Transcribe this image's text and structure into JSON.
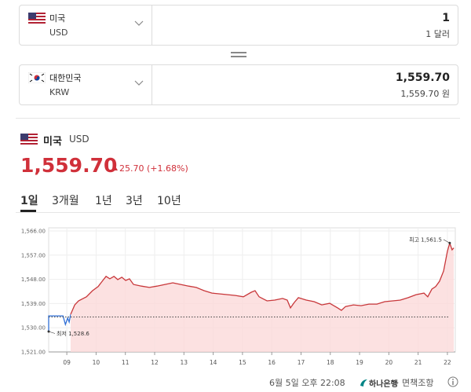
{
  "converter": {
    "from": {
      "country": "미국",
      "code": "USD",
      "amount": "1",
      "amount_text": "1 달러"
    },
    "to": {
      "country": "대한민국",
      "code": "KRW",
      "amount": "1,559.70",
      "amount_text": "1,559.70 원"
    }
  },
  "quote": {
    "country": "미국",
    "code": "USD",
    "price": "1,559.70",
    "change": "25.70 (+1.68%)"
  },
  "tabs": [
    "1일",
    "3개월",
    "1년",
    "3년",
    "10년"
  ],
  "active_tab": 0,
  "footer": {
    "timestamp": "6월 5일 오후 22:08",
    "bank": "하나은행",
    "disclaimer": "· 면책조항"
  },
  "chart_data": {
    "type": "line",
    "series": [
      {
        "color": "#2f6fd6",
        "x": [
          8.38,
          8.38,
          8.87,
          8.95,
          9.03,
          9.08,
          9.13
        ],
        "values": [
          1528.6,
          1534.4,
          1534.4,
          1531.2,
          1533.6,
          1532.1,
          1535.0
        ]
      },
      {
        "color": "#c8373a",
        "fill": "#fbdada",
        "x": [
          9.13,
          9.27,
          9.4,
          9.67,
          9.88,
          10.07,
          10.21,
          10.34,
          10.47,
          10.61,
          10.74,
          10.88,
          11.01,
          11.14,
          11.28,
          11.55,
          11.82,
          12.08,
          12.35,
          12.62,
          12.89,
          13.16,
          13.42,
          13.69,
          13.96,
          14.23,
          14.5,
          14.76,
          15.03,
          15.3,
          15.43,
          15.57,
          15.84,
          16.1,
          16.37,
          16.53,
          16.64,
          16.77,
          16.91,
          17.18,
          17.45,
          17.71,
          17.98,
          18.25,
          18.38,
          18.52,
          18.79,
          19.05,
          19.32,
          19.59,
          19.86,
          20.13,
          20.39,
          20.66,
          20.93,
          21.2,
          21.33,
          21.47,
          21.6,
          21.73,
          21.87,
          22.0,
          22.08,
          22.16,
          22.22
        ],
        "values": [
          1535.0,
          1538.5,
          1540.0,
          1541.5,
          1543.8,
          1545.3,
          1547.3,
          1549.1,
          1548.2,
          1549.1,
          1547.9,
          1548.8,
          1547.6,
          1548.2,
          1546.1,
          1545.5,
          1545.0,
          1545.5,
          1546.1,
          1546.7,
          1546.1,
          1545.5,
          1545.0,
          1543.8,
          1542.9,
          1542.6,
          1542.3,
          1542.0,
          1541.5,
          1543.2,
          1543.8,
          1541.5,
          1540.0,
          1540.3,
          1540.9,
          1540.3,
          1537.4,
          1539.4,
          1541.2,
          1540.3,
          1539.7,
          1538.5,
          1539.1,
          1537.4,
          1536.5,
          1537.9,
          1538.5,
          1538.2,
          1538.8,
          1538.8,
          1539.7,
          1540.0,
          1540.3,
          1541.2,
          1542.3,
          1542.9,
          1541.5,
          1544.4,
          1545.3,
          1547.3,
          1551.1,
          1558.4,
          1561.5,
          1559.0,
          1559.7
        ]
      }
    ],
    "reference_line": 1534.0,
    "annotations": [
      {
        "label": "최고 1,561.5",
        "value": 1561.5,
        "x": 22.08
      },
      {
        "label": "최저 1,528.6",
        "value": 1528.6,
        "x": 8.38
      }
    ],
    "xlim": [
      8.38,
      22.27
    ],
    "ylim": [
      1521,
      1566
    ],
    "xticks": [
      {
        "value": 9,
        "label": "09"
      },
      10,
      11,
      12,
      13,
      14,
      15,
      16,
      17,
      18,
      19,
      20,
      21,
      22
    ],
    "yticks": [
      {
        "value": 1521,
        "label": "1,521.00"
      },
      {
        "value": 1530,
        "label": "1,530.00"
      },
      {
        "value": 1539,
        "label": "1,539.00"
      },
      {
        "value": 1548,
        "label": "1,548.00"
      },
      {
        "value": 1557,
        "label": "1,557.00"
      },
      {
        "value": 1566,
        "label": "1,566.00"
      }
    ],
    "grid": true
  }
}
